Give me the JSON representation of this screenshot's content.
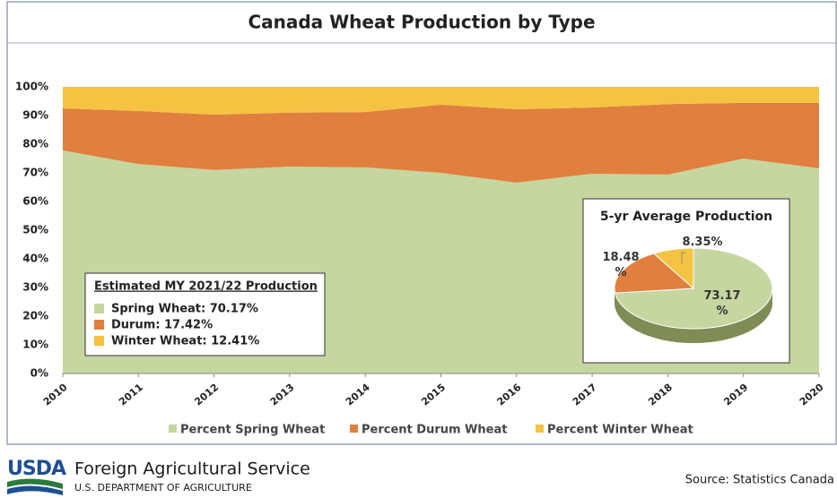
{
  "chart_data": [
    {
      "type": "stacked-area",
      "title": "Canada Wheat Production by Type",
      "x": [
        2010,
        2011,
        2012,
        2013,
        2014,
        2015,
        2016,
        2017,
        2018,
        2019,
        2020
      ],
      "xlim": [
        2010,
        2020
      ],
      "xticks": [
        2010,
        2011,
        2012,
        2013,
        2014,
        2015,
        2016,
        2017,
        2018,
        2019,
        2020
      ],
      "ylim": [
        0,
        100
      ],
      "yticks": [
        {
          "value": 0,
          "label": "0%"
        },
        {
          "value": 10,
          "label": "10%"
        },
        {
          "value": 20,
          "label": "20%"
        },
        {
          "value": 30,
          "label": "30%"
        },
        {
          "value": 40,
          "label": "40%"
        },
        {
          "value": 50,
          "label": "50%"
        },
        {
          "value": 60,
          "label": "60%"
        },
        {
          "value": 70,
          "label": "70%"
        },
        {
          "value": 80,
          "label": "80%"
        },
        {
          "value": 90,
          "label": "90%"
        },
        {
          "value": 100,
          "label": "100%"
        }
      ],
      "grid": false,
      "series": [
        {
          "name": "Percent Spring Wheat",
          "color": "#c5d6a0",
          "values": [
            77.8,
            73.1,
            71.0,
            72.2,
            71.9,
            70.0,
            66.6,
            69.7,
            69.4,
            75.0,
            71.6
          ]
        },
        {
          "name": "Percent Durum Wheat",
          "color": "#e07f3e",
          "values": [
            14.7,
            18.5,
            19.3,
            18.8,
            19.3,
            23.8,
            25.6,
            23.1,
            24.6,
            19.4,
            22.8
          ]
        },
        {
          "name": "Percent Winter Wheat",
          "color": "#f5c342",
          "values": [
            7.5,
            8.4,
            9.7,
            9.0,
            8.8,
            6.2,
            7.8,
            7.2,
            6.0,
            5.6,
            5.6
          ]
        }
      ],
      "annotation": {
        "title": "Estimated MY 2021/22 Production",
        "items": [
          "Spring Wheat:  70.17%",
          "Durum:  17.42%",
          "Winter Wheat: 12.41%"
        ]
      }
    },
    {
      "type": "pie",
      "title": "5-yr Average Production",
      "categories": [
        "Spring Wheat",
        "Durum",
        "Winter Wheat"
      ],
      "values": [
        73.17,
        18.48,
        8.35
      ],
      "value_labels": [
        "73.17 %",
        "18.48 %",
        "8.35%"
      ],
      "colors": [
        "#c5d6a0",
        "#e07f3e",
        "#f5c342"
      ]
    }
  ],
  "footer": {
    "logo": "USDA",
    "agency": "Foreign Agricultural Service",
    "department": "U.S. DEPARTMENT OF AGRICULTURE",
    "source": "Source: Statistics Canada"
  }
}
